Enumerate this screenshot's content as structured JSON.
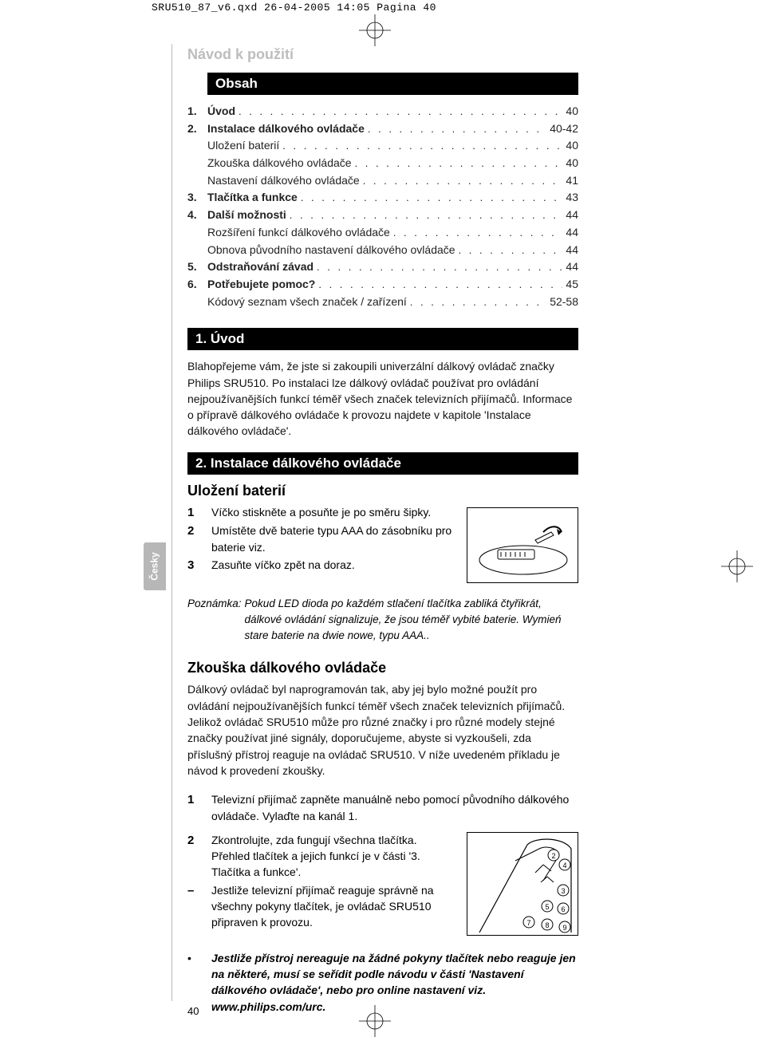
{
  "qxd_header": "SRU510_87_v6.qxd  26-04-2005  14:05  Pagina 40",
  "nav_title": "Návod k použití",
  "lang_tab": "Česky",
  "page_number": "40",
  "obsah_heading": "Obsah",
  "toc": [
    {
      "num": "1.",
      "label": "Úvod",
      "bold": true,
      "page": "40"
    },
    {
      "num": "2.",
      "label": "Instalace dálkového ovládače",
      "bold": true,
      "page": "40-42"
    },
    {
      "num": "",
      "label": "Uložení baterií",
      "bold": false,
      "page": "40"
    },
    {
      "num": "",
      "label": "Zkouška dálkového ovládače",
      "bold": false,
      "page": "40"
    },
    {
      "num": "",
      "label": "Nastavení dálkového ovládače",
      "bold": false,
      "page": "41"
    },
    {
      "num": "3.",
      "label": "Tlačítka a funkce",
      "bold": true,
      "page": "43"
    },
    {
      "num": "4.",
      "label": "Další možnosti",
      "bold": true,
      "page": "44"
    },
    {
      "num": "",
      "label": "Rozšíření funkcí dálkového ovládače",
      "bold": false,
      "page": "44"
    },
    {
      "num": "",
      "label": "Obnova původního nastavení dálkového ovládače",
      "bold": false,
      "page": "44"
    },
    {
      "num": "5.",
      "label": "Odstraňování závad",
      "bold": true,
      "page": "44"
    },
    {
      "num": "6.",
      "label": "Potřebujete pomoc?",
      "bold": true,
      "page": "45"
    },
    {
      "num": "",
      "label": "Kódový seznam všech značek / zařízení",
      "bold": false,
      "page": "52-58"
    }
  ],
  "sec1_heading": "1. Úvod",
  "sec1_body": "Blahopřejeme vám, že jste si zakoupili univerzální dálkový ovládač značky Philips SRU510. Po instalaci lze dálkový ovládač používat pro ovládání nejpoužívanějších funkcí téměř všech značek televizních přijímačů. Informace o přípravě dálkového ovládače k provozu najdete v kapitole 'Instalace dálkového ovládače'.",
  "sec2_heading": "2. Instalace dálkového ovládače",
  "sec2_sub1": "Uložení baterií",
  "sec2_steps": [
    {
      "n": "1",
      "t": "Víčko stiskněte a posuňte je po směru šipky."
    },
    {
      "n": "2",
      "t": "Umístěte dvě baterie typu AAA do zásobníku pro baterie viz."
    },
    {
      "n": "3",
      "t": "Zasuňte víčko zpět na doraz."
    }
  ],
  "note_label": "Poznámka:",
  "note_body": "Pokud LED dioda po každém stlačení tlačítka zabliká čtyřikrát, dálkové ovládání signalizuje, že jsou téměř vybité baterie. Wymień stare baterie na dwie nowe, typu AAA..",
  "sec2_sub2": "Zkouška dálkového ovládače",
  "sec2_body2": "Dálkový ovládač byl naprogramován tak, aby jej bylo možné použít pro ovládání nejpoužívanějších funkcí téměř všech značek televizních přijímačů. Jelikož ovládač SRU510 může pro různé značky i pro různé modely stejné značky používat jiné signály, doporučujeme, abyste si vyzkoušeli, zda příslušný přístroj reaguje na ovládač SRU510. V níže uvedeném příkladu je návod k provedení zkoušky.",
  "sec2_steps2": [
    {
      "n": "1",
      "t": "Televizní přijímač zapněte manuálně nebo pomocí původního dálkového ovládače. Vylaďte na kanál 1."
    },
    {
      "n": "2",
      "t": "Zkontrolujte, zda fungují všechna tlačítka. Přehled tlačítek a jejich funkcí je v části '3. Tlačítka a funkce'."
    },
    {
      "n": "–",
      "t": "Jestliže televizní přijímač reaguje správně na všechny pokyny tlačítek, je ovládač SRU510 připraven k provozu."
    }
  ],
  "bullet_text": "Jestliže přístroj nereaguje na žádné pokyny tlačítek nebo reaguje jen na některé, musí se seřídit podle návodu v části 'Nastavení dálkového ovládače', nebo pro online nastavení viz. www.philips.com/urc.",
  "colors": {
    "bar_bg": "#000000",
    "bar_fg": "#ffffff",
    "light_heading": "#bdbdbd",
    "tab_bg": "#b7b7b7",
    "text": "#111111"
  }
}
